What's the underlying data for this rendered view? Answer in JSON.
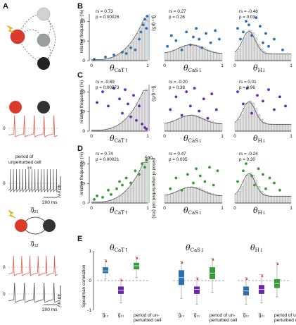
{
  "panels": {
    "A": "A",
    "B": "B",
    "C": "C",
    "D": "D",
    "E": "E"
  },
  "panel_a": {
    "period_label_line1": "period of",
    "period_label_line2": "unperturbed cell",
    "scale_mv": "40 mV",
    "scale_ms": "200 ms",
    "scale_mv_2": "40 mV",
    "scale_ms_2": "200 ms",
    "zero_1": "0",
    "zero_2": "0",
    "zero_3": "0",
    "zero_4": "0",
    "g21": "g̅",
    "g21_sub": "21",
    "g12": "g̅",
    "g12_sub": "12",
    "colors": {
      "red_cell": "#d93a2b",
      "gray_cell": "#b9bfbf",
      "dark_cell": "#333333",
      "red_trace": "#e05a4a"
    }
  },
  "thetas": {
    "t1": "θ",
    "t1_sub": "CaT↑",
    "t2": "θ",
    "t2_sub": "CaS↓",
    "t3": "θ",
    "t3_sub": "H↓"
  },
  "axis_common": {
    "ylabel": "relative frequency (%)",
    "y_ticks": [
      "0",
      "10",
      "20"
    ],
    "x_ticks": [
      "0",
      "1",
      "0",
      "1",
      "0",
      "1"
    ]
  },
  "row_b": {
    "right_axis": "g̅₁₂ (μS)",
    "stats": [
      {
        "rs": "rs = 0.73",
        "p": "p = 0.00026"
      },
      {
        "rs": "rs = 0.27",
        "p": "p = 0.26"
      },
      {
        "rs": "rs = -0.48",
        "p": "p = 0.03"
      }
    ],
    "dot_color": "#2f6fb0"
  },
  "row_c": {
    "right_axis": "g̅₂₁ (μS)",
    "stats": [
      {
        "rs": "rs = -0.69",
        "p": "p = 0.00073"
      },
      {
        "rs": "rs = -0.20",
        "p": "p = 0.38"
      },
      {
        "rs": "rs = 0.01",
        "p": "p = 0.96"
      }
    ],
    "dot_color": "#6a2aa8"
  },
  "row_d": {
    "right_axis": "period of unperturbed cell (ms)",
    "right_tick": "500",
    "stats": [
      {
        "rs": "rs = 0.74",
        "p": "p = 0.00021"
      },
      {
        "rs": "rs = 0.47",
        "p": "p = 0.035"
      },
      {
        "rs": "rs = -0.24",
        "p": "p = 0.30"
      }
    ],
    "dot_color": "#3a9a3a"
  },
  "panel_e": {
    "ylabel": "Spearman correlation",
    "y_ticks": [
      "1",
      "0",
      "-1"
    ],
    "groups": [
      {
        "labels": [
          "g̅₁₂",
          "g̅₂₁",
          "period of un-perturbed cell"
        ]
      },
      {
        "labels": [
          "g̅₁₂",
          "g̅₂₁",
          "period of un-perturbed cell"
        ]
      },
      {
        "labels": [
          "g̅₁₂",
          "g̅₂₁",
          "period of un-perturbed cell"
        ]
      }
    ],
    "box_colors": {
      "g12": "#2f6fb0",
      "g21": "#6a2aa8",
      "period": "#3a9a3a"
    }
  }
}
